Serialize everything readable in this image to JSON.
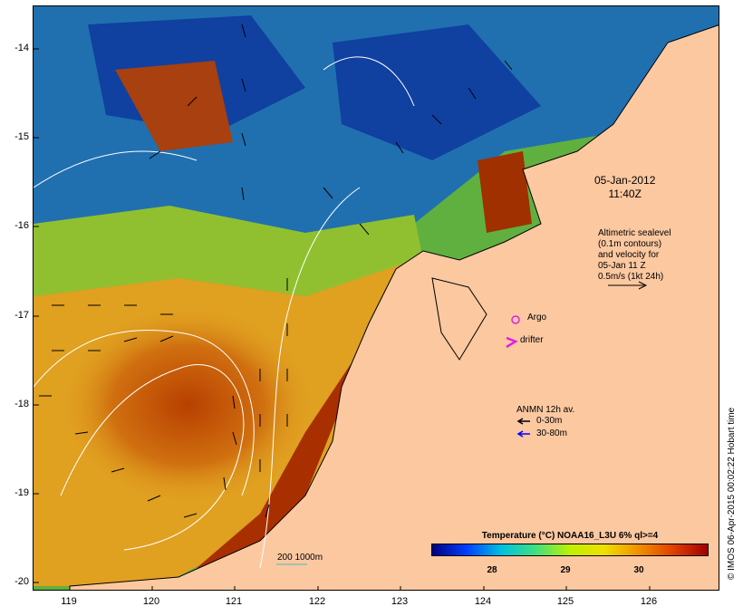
{
  "map": {
    "date_line1": "05-Jan-2012",
    "date_line2": "11:40Z",
    "altimetry_lines": [
      "Altimetric sealevel",
      "(0.1m contours)",
      "and velocity for",
      "05-Jan 11 Z",
      "0.5m/s (1kt 24h)"
    ],
    "argo_label": "Argo",
    "drifter_label": "drifter",
    "anmn_title": "ANMN 12h av.",
    "anmn_0_30": "0-30m",
    "anmn_30_80": "30-80m",
    "scale_label": "200  1000m",
    "colorbar_title": "Temperature (°C) NOAA16_L3U 6% ql>=4",
    "colorbar_ticks": [
      "28",
      "29",
      "30"
    ],
    "credit": "© IMOS 06-Apr-2015 00:02:22 Hobart time",
    "lat_labels": [
      "-14",
      "-15",
      "-16",
      "-17",
      "-18",
      "-19",
      "-20"
    ],
    "lon_labels": [
      "119",
      "120",
      "121",
      "122",
      "123",
      "124",
      "125",
      "126"
    ],
    "colors": {
      "land": "#fcc8a0",
      "warm": "#a03000",
      "cool": "#0030c0",
      "argo": "#e020e0",
      "anmn_deep": "#0000ff"
    }
  }
}
